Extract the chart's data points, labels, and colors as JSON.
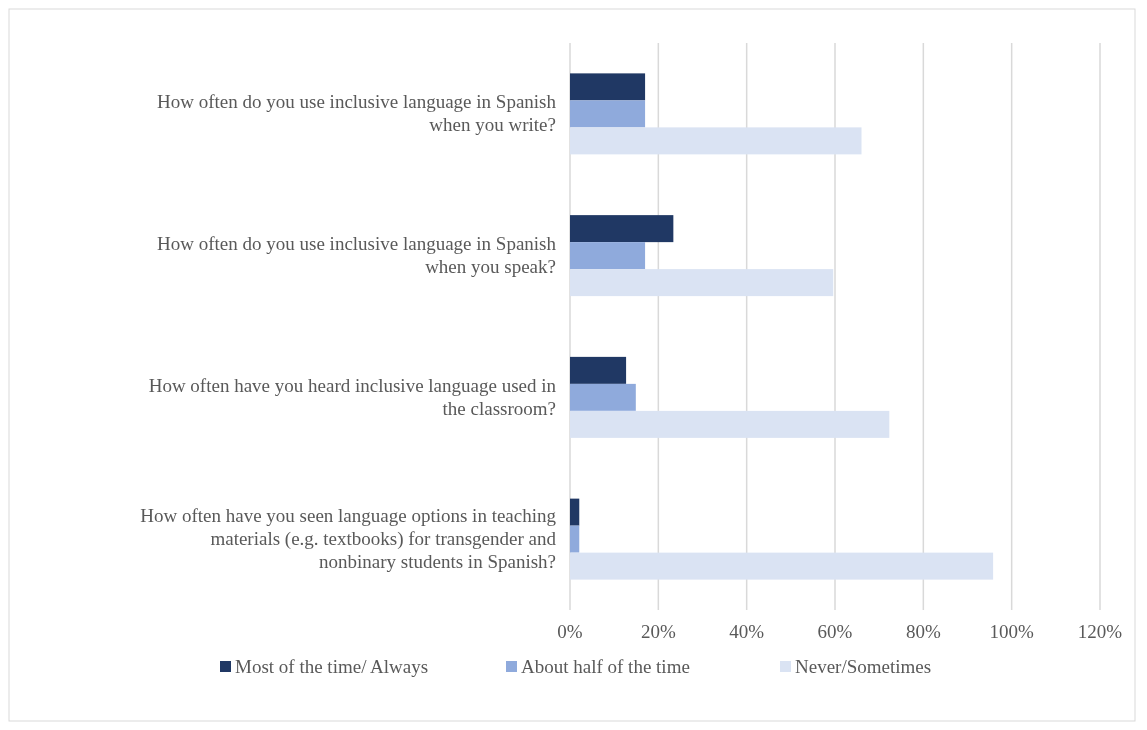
{
  "chart_data": {
    "type": "bar",
    "orientation": "horizontal",
    "categories": [
      "How often do you use inclusive language in Spanish when you write?",
      "How often do you use inclusive language in Spanish when you speak?",
      "How often have you heard inclusive language used in the classroom?",
      "How often have you seen language options in teaching materials (e.g. textbooks) for transgender and nonbinary students in Spanish?"
    ],
    "series": [
      {
        "name": "Most of the time/ Always",
        "color": "#203864",
        "values": [
          17,
          23.4,
          12.7,
          2.1
        ]
      },
      {
        "name": "About half of the time",
        "color": "#8faadc",
        "values": [
          17,
          17,
          14.9,
          2.1
        ]
      },
      {
        "name": "Never/Sometimes",
        "color": "#dae3f3",
        "values": [
          66,
          59.6,
          72.3,
          95.8
        ]
      }
    ],
    "xlim": [
      0,
      120
    ],
    "xticks": [
      {
        "value": 0,
        "label": "0%"
      },
      {
        "value": 20,
        "label": "20%"
      },
      {
        "value": 40,
        "label": "40%"
      },
      {
        "value": 60,
        "label": "60%"
      },
      {
        "value": 80,
        "label": "80%"
      },
      {
        "value": 100,
        "label": "100%"
      },
      {
        "value": 120,
        "label": "120%"
      }
    ],
    "grid": "x",
    "legend": "bottom"
  }
}
